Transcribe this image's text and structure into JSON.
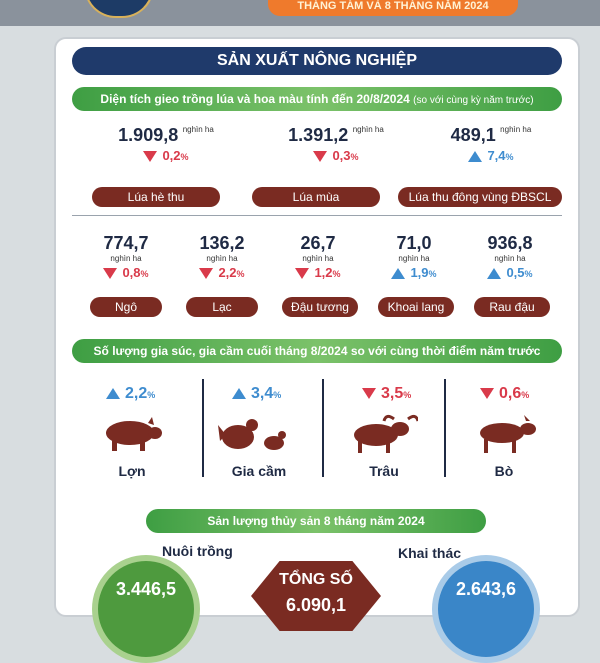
{
  "banner": {
    "text": "THÁNG TÁM VÀ 8 THÁNG NĂM 2024"
  },
  "section_title": "SẢN XUẤT NÔNG NGHIỆP",
  "area": {
    "heading": "Diện tích gieo trồng lúa và hoa màu tính đến 20/8/2024",
    "heading_note": "(so với cùng kỳ năm trước)",
    "unit": "nghìn ha",
    "rice": [
      {
        "value": "1.909,8",
        "change": "0,2",
        "direction": "down",
        "label": "Lúa hè thu"
      },
      {
        "value": "1.391,2",
        "change": "0,3",
        "direction": "down",
        "label": "Lúa mùa"
      },
      {
        "value": "489,1",
        "change": "7,4",
        "direction": "up",
        "label": "Lúa thu đông vùng ĐBSCL"
      }
    ],
    "crops": [
      {
        "value": "774,7",
        "change": "0,8",
        "direction": "down",
        "label": "Ngô"
      },
      {
        "value": "136,2",
        "change": "2,2",
        "direction": "down",
        "label": "Lạc"
      },
      {
        "value": "26,7",
        "change": "1,2",
        "direction": "down",
        "label": "Đậu tương"
      },
      {
        "value": "71,0",
        "change": "1,9",
        "direction": "up",
        "label": "Khoai lang"
      },
      {
        "value": "936,8",
        "change": "0,5",
        "direction": "up",
        "label": "Rau đậu"
      }
    ],
    "pct_symbol": "%"
  },
  "livestock": {
    "heading": "Số lượng gia súc, gia cầm cuối tháng 8/2024 so với cùng thời điểm năm trước",
    "items": [
      {
        "name": "Lợn",
        "change": "2,2",
        "direction": "up",
        "icon": "pig-icon"
      },
      {
        "name": "Gia cầm",
        "change": "3,4",
        "direction": "up",
        "icon": "poultry-icon"
      },
      {
        "name": "Trâu",
        "change": "3,5",
        "direction": "down",
        "icon": "buffalo-icon"
      },
      {
        "name": "Bò",
        "change": "0,6",
        "direction": "down",
        "icon": "cow-icon"
      }
    ],
    "pct_symbol": "%"
  },
  "aquaculture": {
    "heading": "Sản lượng thủy sản 8 tháng năm 2024",
    "farming_label": "Nuôi trồng",
    "farming_value": "3.446,5",
    "total_label": "TỔNG SỐ",
    "total_value": "6.090,1",
    "capture_label": "Khai thác",
    "capture_value": "2.643,6"
  },
  "colors": {
    "navy": "#1f3a6b",
    "green": "#3e9e43",
    "maroon": "#7a2b22",
    "down": "#d93a4a",
    "up": "#3e8ccf",
    "orange": "#ef7a2c"
  }
}
